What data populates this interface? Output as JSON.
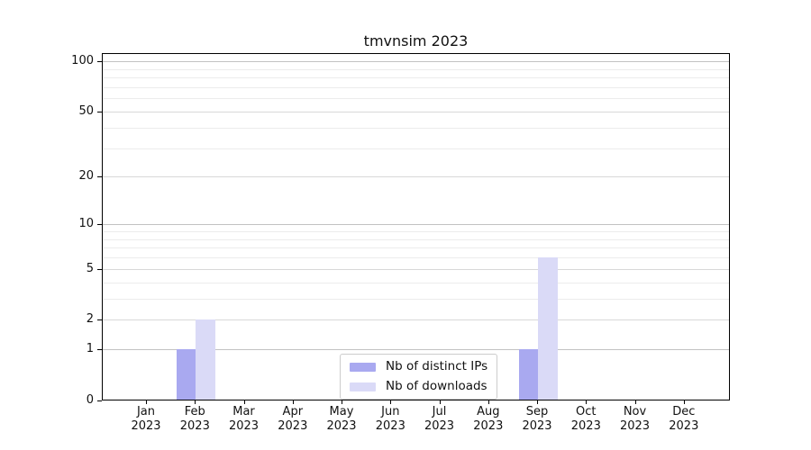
{
  "figure": {
    "background": "#ffffff",
    "text_color": "#111111",
    "spine_color": "#000000"
  },
  "chart_data": {
    "type": "bar",
    "title": "tmvnsim 2023",
    "categories": [
      {
        "month": "Jan",
        "year": "2023"
      },
      {
        "month": "Feb",
        "year": "2023"
      },
      {
        "month": "Mar",
        "year": "2023"
      },
      {
        "month": "Apr",
        "year": "2023"
      },
      {
        "month": "May",
        "year": "2023"
      },
      {
        "month": "Jun",
        "year": "2023"
      },
      {
        "month": "Jul",
        "year": "2023"
      },
      {
        "month": "Aug",
        "year": "2023"
      },
      {
        "month": "Sep",
        "year": "2023"
      },
      {
        "month": "Oct",
        "year": "2023"
      },
      {
        "month": "Nov",
        "year": "2023"
      },
      {
        "month": "Dec",
        "year": "2023"
      }
    ],
    "series": [
      {
        "name": "Nb of distinct IPs",
        "color": "#a9a9f0",
        "values": [
          0,
          1,
          0,
          0,
          0,
          0,
          0,
          0,
          1,
          0,
          0,
          0
        ]
      },
      {
        "name": "Nb of downloads",
        "color": "#dadaf7",
        "values": [
          0,
          2,
          0,
          0,
          0,
          0,
          0,
          0,
          6,
          0,
          0,
          0
        ]
      }
    ],
    "y_axis": {
      "scale": "log10(1+v)",
      "major_ticks": [
        0,
        1,
        2,
        5,
        10,
        20,
        50,
        100
      ],
      "decade_gridlines": [
        1,
        10,
        100
      ],
      "mid_gridlines": [
        2,
        5,
        20,
        50
      ],
      "minor_gridlines": [
        3,
        4,
        6,
        7,
        8,
        9,
        30,
        40,
        60,
        70,
        80,
        90
      ],
      "limit_top": 112
    },
    "x_axis": {
      "tick_count": 12
    },
    "legend": {
      "position": "lower center inside",
      "entries": [
        "Nb of distinct IPs",
        "Nb of downloads"
      ]
    },
    "grid": {
      "decade_color": "#c2c2c2",
      "mid_color": "#d8d8d8",
      "minor_color": "#ececec"
    }
  }
}
